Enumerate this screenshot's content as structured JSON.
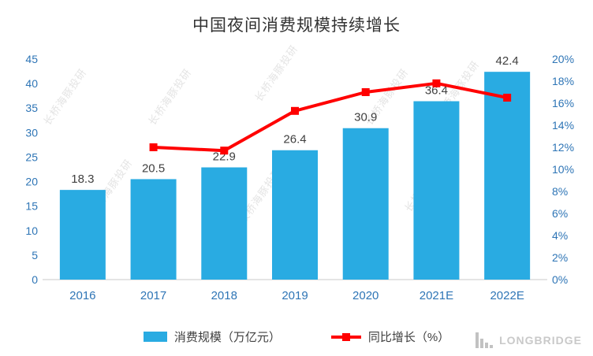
{
  "title": "中国夜间消费规模持续增长",
  "watermark_text": "长桥海豚投研",
  "legend": {
    "bars": "消费规模（万亿元）",
    "line": "同比增长（%）"
  },
  "logo": {
    "name": "LONGBRIDGE"
  },
  "colors": {
    "bar": "#29abe2",
    "line": "#ff0000",
    "axis_text": "#2e75b6",
    "label_text": "#404040",
    "axis_line": "#c9c9c9",
    "watermark": "#e4e4e4",
    "logo": "#c9c9c9"
  },
  "chart_data": {
    "type": "bar",
    "title": "中国夜间消费规模持续增长",
    "categories": [
      "2016",
      "2017",
      "2018",
      "2019",
      "2020",
      "2021E",
      "2022E"
    ],
    "series": [
      {
        "name": "消费规模（万亿元）",
        "type": "bar",
        "axis": "left",
        "values": [
          18.3,
          20.5,
          22.9,
          26.4,
          30.9,
          36.4,
          42.4
        ]
      },
      {
        "name": "同比增长（%）",
        "type": "line",
        "axis": "right",
        "values": [
          null,
          12.0,
          11.7,
          15.3,
          17.0,
          17.8,
          16.5
        ]
      }
    ],
    "left_axis": {
      "min": 0,
      "max": 45,
      "step": 5
    },
    "right_axis": {
      "min": 0,
      "max": 20,
      "step": 2,
      "suffix": "%"
    },
    "grid": false,
    "legend_position": "bottom"
  }
}
